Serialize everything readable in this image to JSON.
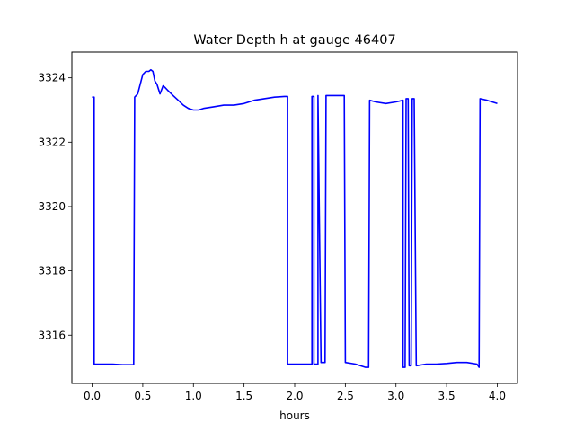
{
  "chart_data": {
    "type": "line",
    "title": "Water Depth h at gauge 46407",
    "xlabel": "hours",
    "ylabel": "",
    "xlim": [
      -0.2,
      4.2
    ],
    "ylim": [
      3314.5,
      3324.8
    ],
    "xticks": [
      0.0,
      0.5,
      1.0,
      1.5,
      2.0,
      2.5,
      3.0,
      3.5,
      4.0
    ],
    "xtick_labels": [
      "0.0",
      "0.5",
      "1.0",
      "1.5",
      "2.0",
      "2.5",
      "3.0",
      "3.5",
      "4.0"
    ],
    "yticks": [
      3316,
      3318,
      3320,
      3322,
      3324
    ],
    "ytick_labels": [
      "3316",
      "3318",
      "3320",
      "3322",
      "3324"
    ],
    "grid": false,
    "series": [
      {
        "color": "#0000ff",
        "x": [
          0.0,
          0.02,
          0.02,
          0.1,
          0.2,
          0.3,
          0.41,
          0.42,
          0.45,
          0.5,
          0.53,
          0.56,
          0.58,
          0.6,
          0.62,
          0.64,
          0.67,
          0.7,
          0.72,
          0.75,
          0.8,
          0.85,
          0.9,
          0.95,
          1.0,
          1.05,
          1.1,
          1.2,
          1.3,
          1.4,
          1.5,
          1.6,
          1.7,
          1.8,
          1.9,
          1.93,
          1.93,
          2.0,
          2.1,
          2.17,
          2.17,
          2.19,
          2.19,
          2.23,
          2.23,
          2.26,
          2.3,
          2.31,
          2.4,
          2.49,
          2.5,
          2.6,
          2.7,
          2.73,
          2.74,
          2.8,
          2.9,
          3.0,
          3.07,
          3.07,
          3.09,
          3.1,
          3.12,
          3.13,
          3.15,
          3.16,
          3.18,
          3.2,
          3.3,
          3.4,
          3.5,
          3.6,
          3.7,
          3.8,
          3.82,
          3.83,
          3.9,
          4.0
        ],
        "values": [
          3323.4,
          3323.4,
          3315.1,
          3315.1,
          3315.1,
          3315.08,
          3315.08,
          3323.4,
          3323.5,
          3324.1,
          3324.2,
          3324.2,
          3324.25,
          3324.2,
          3323.9,
          3323.8,
          3323.5,
          3323.75,
          3323.7,
          3323.6,
          3323.45,
          3323.3,
          3323.15,
          3323.05,
          3323.0,
          3323.0,
          3323.05,
          3323.1,
          3323.15,
          3323.15,
          3323.2,
          3323.3,
          3323.35,
          3323.4,
          3323.42,
          3323.42,
          3315.1,
          3315.1,
          3315.1,
          3315.1,
          3323.42,
          3323.42,
          3315.1,
          3315.1,
          3323.45,
          3315.15,
          3315.15,
          3323.45,
          3323.45,
          3323.45,
          3315.15,
          3315.1,
          3315.0,
          3315.0,
          3323.3,
          3323.25,
          3323.2,
          3323.25,
          3323.3,
          3315.0,
          3315.0,
          3323.35,
          3323.35,
          3315.05,
          3315.05,
          3323.35,
          3323.35,
          3315.05,
          3315.1,
          3315.1,
          3315.12,
          3315.15,
          3315.15,
          3315.1,
          3315.0,
          3323.35,
          3323.3,
          3323.2
        ]
      }
    ]
  }
}
